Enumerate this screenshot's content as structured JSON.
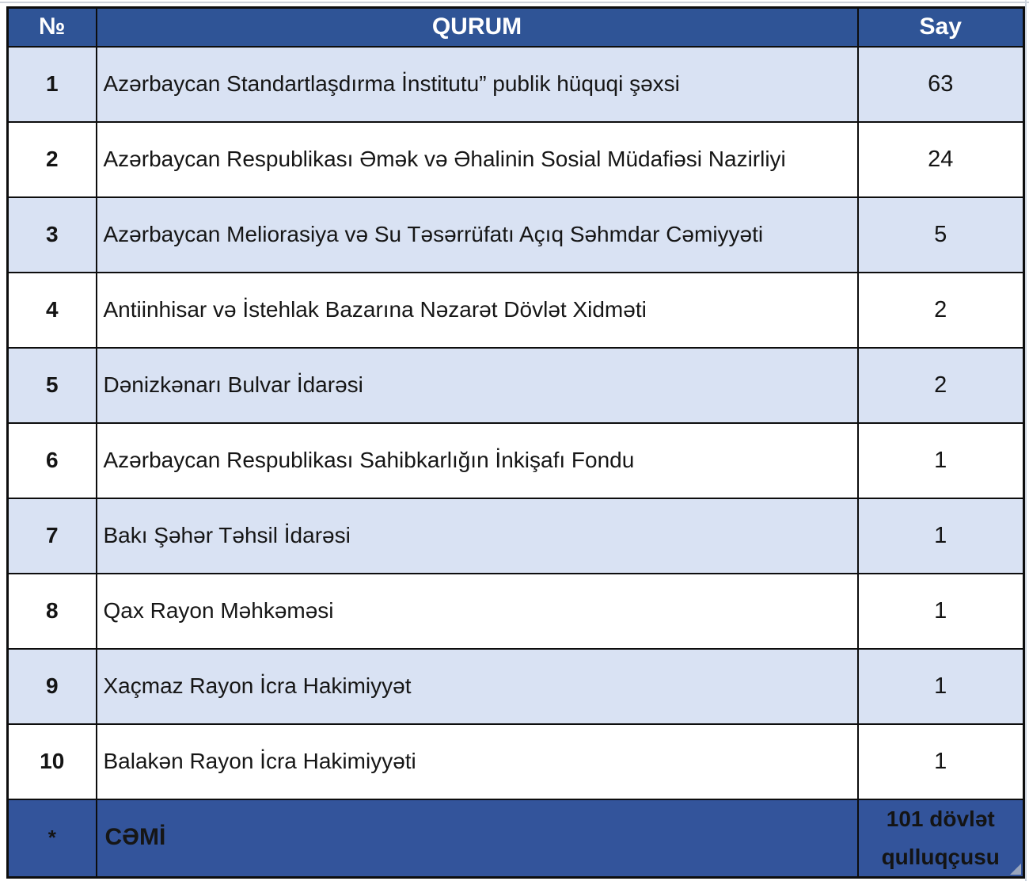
{
  "table": {
    "columns": {
      "no": "№",
      "qurum": "QURUM",
      "say": "Say"
    },
    "rows": [
      {
        "no": "1",
        "qurum": "Azərbaycan Standartlaşdırma İnstitutu” publik hüquqi şəxsi",
        "say": "63"
      },
      {
        "no": "2",
        "qurum": "Azərbaycan Respublikası Əmək və Əhalinin Sosial Müdafiəsi Nazirliyi",
        "say": "24"
      },
      {
        "no": "3",
        "qurum": "Azərbaycan Meliorasiya və Su Təsərrüfatı Açıq Səhmdar Cəmiyyəti",
        "say": "5"
      },
      {
        "no": "4",
        "qurum": "Antiinhisar və İstehlak Bazarına Nəzarət Dövlət Xidməti",
        "say": "2"
      },
      {
        "no": "5",
        "qurum": "Dənizkənarı Bulvar İdarəsi",
        "say": "2"
      },
      {
        "no": "6",
        "qurum": "Azərbaycan Respublikası Sahibkarlığın İnkişafı Fondu",
        "say": "1"
      },
      {
        "no": "7",
        "qurum": "Bakı Şəhər Təhsil İdarəsi",
        "say": "1"
      },
      {
        "no": "8",
        "qurum": "Qax Rayon Məhkəməsi",
        "say": "1"
      },
      {
        "no": "9",
        "qurum": "Xaçmaz Rayon İcra Hakimiyyət",
        "say": "1"
      },
      {
        "no": "10",
        "qurum": "Balakən Rayon İcra Hakimiyyəti",
        "say": "1"
      }
    ],
    "footer": {
      "no": "*",
      "qurum": "CƏMİ",
      "say": "101 dövlət qulluqçusu"
    }
  },
  "colors": {
    "header_blue": "#2F5496",
    "footer_blue": "#33549B",
    "row_alt": "#D9E2F3",
    "row_white": "#FFFFFF"
  }
}
